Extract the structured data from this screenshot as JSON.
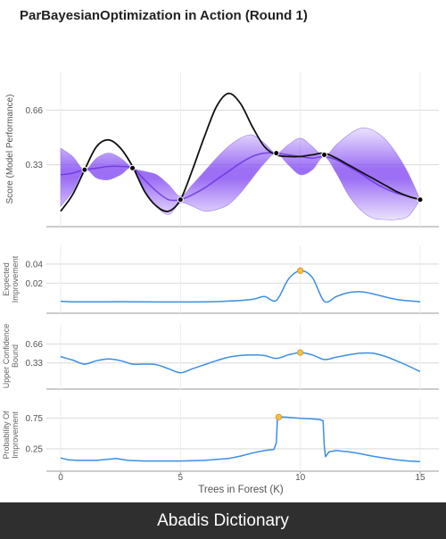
{
  "chart_data": {
    "type": "line",
    "title": "ParBayesianOptimization in Action (Round 1)",
    "xlabel": "Trees in Forest (K)",
    "xlim": [
      0,
      15
    ],
    "x_ticks": [
      "0",
      "5",
      "10",
      "15"
    ],
    "colors": {
      "gp_band": "#7b3ff2",
      "objective": "#111111",
      "acquisition": "#3a8ee6",
      "best_point": "#f5c242"
    },
    "panels": [
      {
        "id": "score",
        "ylabel": "Score (Model Performance)",
        "y_ticks": [
          "0.33",
          "0.66"
        ],
        "ylim": [
          0.0,
          0.85
        ],
        "objective": {
          "x": [
            0,
            0.5,
            1,
            1.5,
            2,
            2.5,
            3,
            3.5,
            4,
            4.5,
            5,
            5.5,
            6,
            6.5,
            7,
            7.5,
            8,
            8.5,
            9,
            9.5,
            10,
            10.5,
            11,
            11.5,
            12,
            12.5,
            13,
            13.5,
            14,
            14.5,
            15
          ],
          "y": [
            0.05,
            0.15,
            0.3,
            0.44,
            0.48,
            0.43,
            0.32,
            0.17,
            0.08,
            0.05,
            0.12,
            0.3,
            0.5,
            0.68,
            0.76,
            0.7,
            0.56,
            0.44,
            0.39,
            0.38,
            0.38,
            0.39,
            0.4,
            0.37,
            0.33,
            0.29,
            0.25,
            0.21,
            0.17,
            0.14,
            0.12
          ]
        },
        "gp_mean": {
          "x": [
            0,
            0.5,
            1,
            1.5,
            2,
            2.5,
            3,
            3.5,
            4,
            4.5,
            5,
            5.5,
            6,
            6.5,
            7,
            7.5,
            8,
            8.5,
            9,
            9.5,
            10,
            10.5,
            11,
            11.5,
            12,
            12.5,
            13,
            13.5,
            14,
            14.5,
            15
          ],
          "y": [
            0.27,
            0.28,
            0.3,
            0.31,
            0.32,
            0.32,
            0.31,
            0.24,
            0.17,
            0.12,
            0.12,
            0.15,
            0.19,
            0.24,
            0.29,
            0.34,
            0.38,
            0.4,
            0.4,
            0.39,
            0.38,
            0.37,
            0.38,
            0.36,
            0.32,
            0.28,
            0.23,
            0.19,
            0.16,
            0.14,
            0.12
          ],
          "upper": [
            0.43,
            0.38,
            0.3,
            0.37,
            0.4,
            0.37,
            0.31,
            0.29,
            0.27,
            0.21,
            0.14,
            0.21,
            0.29,
            0.37,
            0.44,
            0.49,
            0.51,
            0.46,
            0.4,
            0.45,
            0.49,
            0.44,
            0.38,
            0.45,
            0.51,
            0.55,
            0.54,
            0.49,
            0.4,
            0.28,
            0.12
          ],
          "lower": [
            0.08,
            0.17,
            0.3,
            0.25,
            0.24,
            0.27,
            0.31,
            0.18,
            0.08,
            0.03,
            0.1,
            0.08,
            0.05,
            0.06,
            0.09,
            0.16,
            0.25,
            0.34,
            0.4,
            0.33,
            0.27,
            0.3,
            0.38,
            0.28,
            0.15,
            0.06,
            0.01,
            0.0,
            0.0,
            0.02,
            0.12
          ]
        },
        "sampled_points": {
          "x": [
            1,
            3,
            5,
            9,
            11,
            15
          ],
          "y": [
            0.3,
            0.31,
            0.12,
            0.4,
            0.39,
            0.12
          ]
        }
      },
      {
        "id": "ei",
        "ylabel": "Expected Improvement",
        "y_ticks": [
          "0.02",
          "0.04"
        ],
        "ylim": [
          -0.004,
          0.052
        ],
        "line": {
          "x": [
            0,
            0.5,
            1,
            2,
            3,
            4,
            5,
            6,
            7,
            8,
            8.5,
            9,
            9.5,
            10,
            10.5,
            11,
            11.5,
            12,
            12.5,
            13,
            14,
            15
          ],
          "y": [
            0.001,
            0.0005,
            0.0005,
            0.0005,
            0.0005,
            0.0003,
            0.0003,
            0.0005,
            0.0012,
            0.003,
            0.006,
            0.002,
            0.024,
            0.033,
            0.026,
            0.001,
            0.006,
            0.01,
            0.011,
            0.009,
            0.003,
            0.0005
          ]
        },
        "best": {
          "x": 10,
          "y": 0.033
        }
      },
      {
        "id": "ucb",
        "ylabel": "Upper Confidence Bound",
        "y_ticks": [
          "0.33",
          "0.66"
        ],
        "ylim": [
          0.0,
          0.9
        ],
        "line": {
          "x": [
            0,
            0.5,
            1,
            1.5,
            2,
            2.5,
            3,
            3.5,
            4,
            4.5,
            5,
            5.5,
            6,
            6.5,
            7,
            7.5,
            8,
            8.5,
            9,
            9.5,
            10,
            10.5,
            11,
            11.5,
            12,
            12.5,
            13,
            13.5,
            14,
            14.5,
            15
          ],
          "y": [
            0.44,
            0.38,
            0.31,
            0.37,
            0.4,
            0.37,
            0.31,
            0.31,
            0.3,
            0.23,
            0.16,
            0.23,
            0.3,
            0.37,
            0.43,
            0.46,
            0.47,
            0.46,
            0.41,
            0.47,
            0.51,
            0.47,
            0.39,
            0.43,
            0.47,
            0.5,
            0.5,
            0.45,
            0.37,
            0.28,
            0.18
          ]
        },
        "best": {
          "x": 10,
          "y": 0.51
        }
      },
      {
        "id": "pi",
        "ylabel": "Probability Of Improvement",
        "y_ticks": [
          "0.25",
          "0.75"
        ],
        "ylim": [
          0.0,
          0.95
        ],
        "line": {
          "x": [
            0,
            0.3,
            0.7,
            1.5,
            2.3,
            2.8,
            3.5,
            5,
            6,
            7,
            7.5,
            8,
            8.5,
            8.9,
            9.0,
            9.05,
            9.3,
            10,
            10.5,
            10.8,
            10.95,
            11.0,
            11.05,
            11.2,
            11.5,
            12,
            12.5,
            13,
            13.5,
            14,
            14.5,
            15
          ],
          "y": [
            0.1,
            0.07,
            0.06,
            0.06,
            0.09,
            0.06,
            0.05,
            0.05,
            0.06,
            0.09,
            0.13,
            0.18,
            0.22,
            0.24,
            0.35,
            0.76,
            0.77,
            0.75,
            0.74,
            0.73,
            0.71,
            0.3,
            0.12,
            0.2,
            0.22,
            0.2,
            0.17,
            0.13,
            0.1,
            0.07,
            0.05,
            0.04
          ]
        },
        "best": {
          "x": 9.1,
          "y": 0.77
        }
      }
    ]
  },
  "footer": {
    "text": "Abadis Dictionary"
  }
}
